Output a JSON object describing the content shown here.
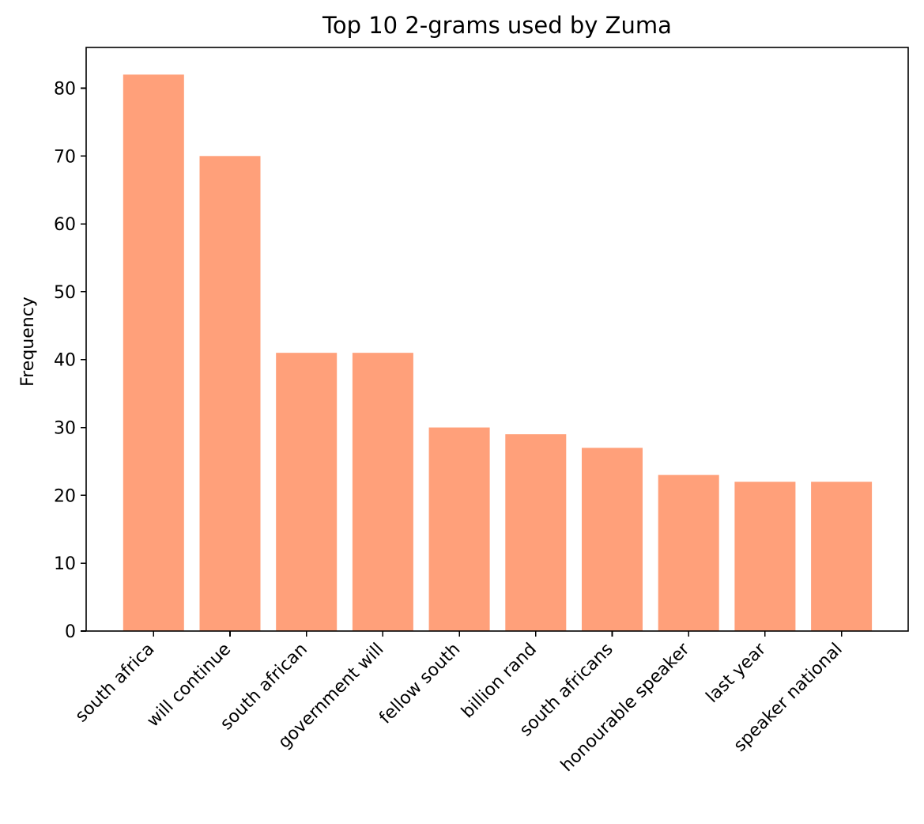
{
  "chart_data": {
    "type": "bar",
    "title": "Top 10 2-grams used by Zuma",
    "xlabel": "",
    "ylabel": "Frequency",
    "categories": [
      "south africa",
      "will continue",
      "south african",
      "government will",
      "fellow south",
      "billion rand",
      "south africans",
      "honourable speaker",
      "last year",
      "speaker national"
    ],
    "values": [
      82,
      70,
      41,
      41,
      30,
      29,
      27,
      23,
      22,
      22
    ],
    "ylim": [
      0,
      86
    ],
    "yticks": [
      0,
      10,
      20,
      30,
      40,
      50,
      60,
      70,
      80
    ],
    "grid": false,
    "bar_color": "#FFA07A",
    "x_tick_rotation_deg": 45
  }
}
